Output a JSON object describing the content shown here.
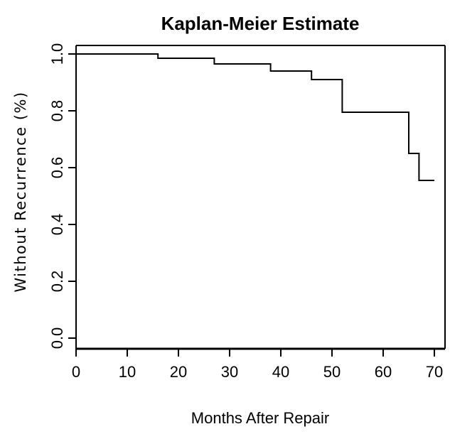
{
  "chart_data": {
    "type": "line",
    "title": "Kaplan-Meier Estimate",
    "xlabel": "Months After Repair",
    "ylabel": "Without Recurrence (%)",
    "xlim": [
      0,
      70
    ],
    "ylim": [
      0.0,
      1.0
    ],
    "x_ticks": [
      "0",
      "10",
      "20",
      "30",
      "40",
      "50",
      "60",
      "70"
    ],
    "y_ticks": [
      "0.0",
      "0.2",
      "0.4",
      "0.6",
      "0.8",
      "1.0"
    ],
    "grid": false,
    "legend": "none",
    "line_color": "#000000",
    "step": true,
    "series": [
      {
        "x": [
          0,
          16,
          27,
          38,
          46,
          52,
          65,
          67,
          70
        ],
        "y": [
          1.0,
          0.985,
          0.965,
          0.94,
          0.91,
          0.795,
          0.65,
          0.555,
          0.555
        ]
      }
    ]
  }
}
